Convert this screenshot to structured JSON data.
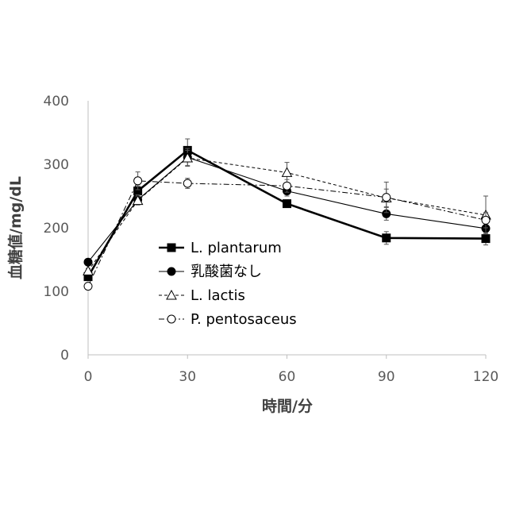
{
  "chart_data": {
    "type": "line",
    "xlabel": "時間/分",
    "ylabel": "血糖値/mg/dL",
    "xlim": [
      0,
      120
    ],
    "ylim": [
      0,
      400
    ],
    "x_ticks": [
      0,
      30,
      60,
      90,
      120
    ],
    "y_ticks": [
      0,
      100,
      200,
      300,
      400
    ],
    "x_tick_labels": [
      "0",
      "30",
      "60",
      "90",
      "120"
    ],
    "y_tick_labels": [
      "0",
      "100",
      "200",
      "300",
      "400"
    ],
    "grid": false,
    "legend_position": "center-left",
    "series": [
      {
        "name": "L. plantarum",
        "marker": "square",
        "filled": true,
        "line": "solid-thick",
        "color": "#000000",
        "x": [
          0,
          15,
          30,
          60,
          90,
          120
        ],
        "y": [
          123,
          258,
          322,
          238,
          184,
          183
        ],
        "err": [
          4,
          8,
          18,
          6,
          10,
          10
        ]
      },
      {
        "name": "乳酸菌なし",
        "marker": "circle",
        "filled": true,
        "line": "solid-thin",
        "color": "#000000",
        "x": [
          0,
          15,
          30,
          60,
          90,
          120
        ],
        "y": [
          146,
          244,
          311,
          258,
          222,
          199
        ],
        "err": [
          4,
          8,
          14,
          8,
          10,
          8
        ]
      },
      {
        "name": "L. lactis",
        "marker": "triangle",
        "filled": false,
        "line": "dashed",
        "color": "#000000",
        "x": [
          0,
          15,
          30,
          60,
          90,
          120
        ],
        "y": [
          132,
          243,
          310,
          287,
          247,
          220
        ],
        "err": [
          4,
          6,
          12,
          16,
          14,
          30
        ]
      },
      {
        "name": "P. pentosaceus",
        "marker": "circle",
        "filled": false,
        "line": "dashdot",
        "color": "#000000",
        "x": [
          0,
          15,
          30,
          60,
          90,
          120
        ],
        "y": [
          108,
          274,
          270,
          266,
          248,
          212
        ],
        "err": [
          4,
          14,
          8,
          10,
          24,
          12
        ]
      }
    ]
  }
}
